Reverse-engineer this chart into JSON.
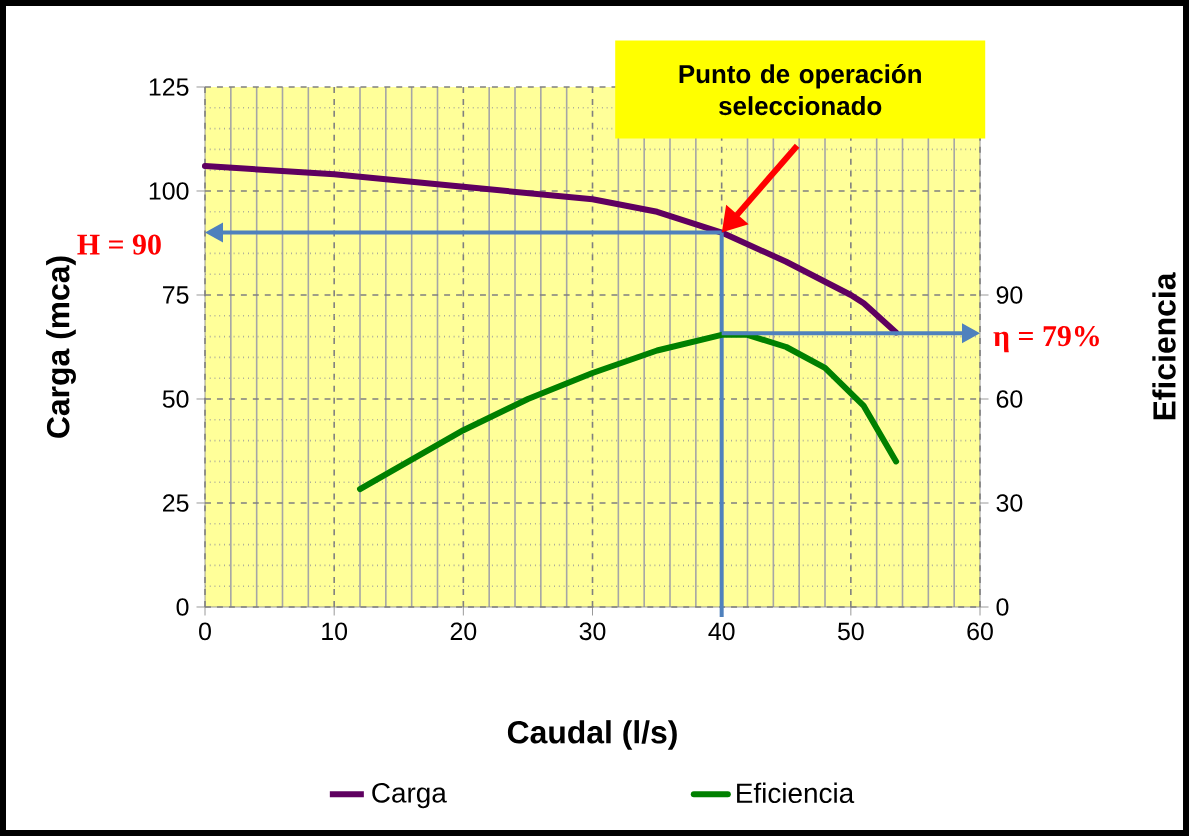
{
  "chart_data": {
    "type": "line",
    "xlabel": "Caudal (l/s)",
    "ylabel": "Carga (mca)",
    "y2label": "Eficiencia",
    "xlim": [
      0,
      60
    ],
    "xticks": [
      0,
      10,
      20,
      30,
      40,
      50,
      60
    ],
    "ylim": [
      0,
      125
    ],
    "yticks": [
      0,
      25,
      50,
      75,
      100,
      125
    ],
    "y2lim": [
      0,
      150
    ],
    "y2ticks": [
      0,
      30,
      60,
      90
    ],
    "grid": true,
    "legend": "bottom",
    "marker": "none",
    "line_style": "solid",
    "series": [
      {
        "name": "Carga",
        "color": "#5f0060",
        "x": [
          0,
          10,
          20,
          30,
          35,
          40,
          45,
          50,
          51,
          53.5
        ],
        "values": [
          106,
          104,
          101,
          98,
          95,
          90,
          83,
          75,
          73,
          66
        ]
      },
      {
        "name": "Eficiencia",
        "color": "#008000",
        "axis": "y2",
        "x": [
          12,
          20,
          25,
          30,
          35,
          40,
          42,
          45,
          48,
          51,
          53.5
        ],
        "values": [
          34,
          51,
          60,
          67.5,
          74,
          78.5,
          78.5,
          75,
          69,
          58,
          42
        ]
      }
    ],
    "ref_lines": [
      {
        "axis": "x",
        "value": 40,
        "color": "#4f81bd"
      },
      {
        "axis": "y",
        "value": 90,
        "label": "H = 90",
        "color": "#4f81bd"
      },
      {
        "axis": "y2",
        "value": 79,
        "label": "η = 79%",
        "color": "#4f81bd"
      }
    ],
    "annotations": [
      "Punto de operación seleccionado"
    ]
  }
}
